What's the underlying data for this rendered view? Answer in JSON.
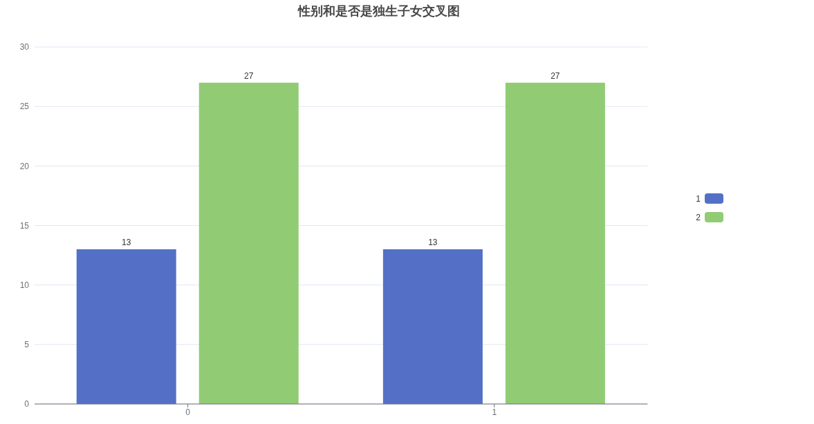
{
  "chart_data": {
    "type": "bar",
    "title": "性别和是否是独生子女交叉图",
    "categories": [
      "0",
      "1"
    ],
    "series": [
      {
        "name": "1",
        "color": "#5470c6",
        "values": [
          13,
          13
        ]
      },
      {
        "name": "2",
        "color": "#91cc75",
        "values": [
          27,
          27
        ]
      }
    ],
    "ylim": [
      0,
      30
    ],
    "yticks": [
      0,
      5,
      10,
      15,
      20,
      25,
      30
    ],
    "grid": "y",
    "legend": "right",
    "data_labels": true
  }
}
